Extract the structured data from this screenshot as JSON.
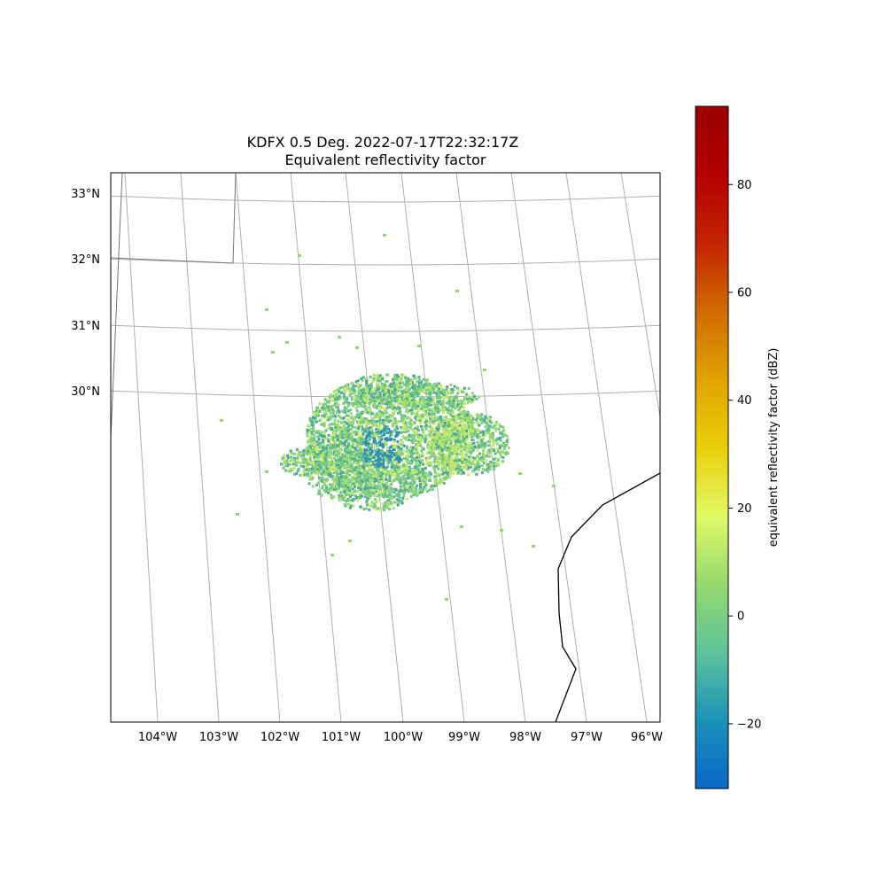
{
  "figure": {
    "title_line1": "KDFX 0.5 Deg. 2022-07-17T22:32:17Z",
    "title_line2": "Equivalent reflectivity factor"
  },
  "map": {
    "lat_labels": [
      "33°N",
      "32°N",
      "31°N",
      "30°N"
    ],
    "lon_labels": [
      "104°W",
      "103°W",
      "102°W",
      "101°W",
      "100°W",
      "99°W",
      "98°W",
      "97°W",
      "96°W"
    ],
    "gridline_color": "#b0b0b0",
    "coastline_color": "#000000"
  },
  "colorbar": {
    "label": "equivalent reflectivity factor (dBZ)",
    "ticks": [
      -20,
      0,
      20,
      40,
      60,
      80
    ],
    "tick_labels": [
      "−20",
      "0",
      "20",
      "40",
      "60",
      "80"
    ],
    "range": [
      -32,
      94.5
    ],
    "colormap": "ChaseSpectral",
    "stops": [
      "#0a67c6",
      "#1b92b8",
      "#5ec39b",
      "#95d96e",
      "#e2fa65",
      "#e9cf0a",
      "#e0a300",
      "#d06a00",
      "#c32400",
      "#b50000",
      "#9c0000"
    ]
  },
  "radar_echo": {
    "site": "KDFX",
    "colors": [
      "#6dc48a",
      "#7fcd82",
      "#8ed67a",
      "#5bb390",
      "#4aa59a",
      "#a8e06e",
      "#c4ea6a"
    ]
  }
}
